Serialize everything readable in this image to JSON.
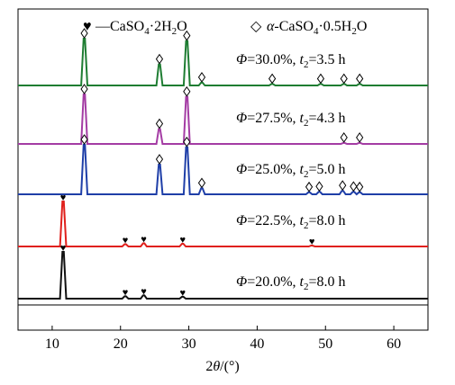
{
  "chart_data": {
    "type": "line",
    "xlabel": "2θ/(°)",
    "ylabel": "",
    "xlim": [
      5,
      65
    ],
    "x_ticks": [
      "10",
      "20",
      "30",
      "40",
      "50",
      "60"
    ],
    "grid": false,
    "legend": {
      "placement": "top",
      "entries": [
        {
          "marker": "♥",
          "label": "—CaSO₄·2H₂O"
        },
        {
          "marker": "◇",
          "label": "α-CaSO₄·0.5H₂O"
        }
      ]
    },
    "series": [
      {
        "name": "Φ=30.0%, t₂=3.5 h",
        "color": "#1e7d32",
        "peaks": [
          {
            "x": 14.7,
            "h": 1.0,
            "marker": "diamond"
          },
          {
            "x": 25.7,
            "h": 0.45,
            "marker": "diamond"
          },
          {
            "x": 29.7,
            "h": 0.95,
            "marker": "diamond"
          },
          {
            "x": 31.9,
            "h": 0.06,
            "marker": "diamond"
          },
          {
            "x": 42.2,
            "h": 0.03,
            "marker": "diamond"
          },
          {
            "x": 49.3,
            "h": 0.03,
            "marker": "diamond"
          },
          {
            "x": 52.7,
            "h": 0.03,
            "marker": "diamond"
          },
          {
            "x": 55.0,
            "h": 0.03,
            "marker": "diamond"
          }
        ]
      },
      {
        "name": "Φ=27.5%, t₂=4.3 h",
        "color": "#a43ca4",
        "peaks": [
          {
            "x": 14.7,
            "h": 1.0,
            "marker": "diamond"
          },
          {
            "x": 25.7,
            "h": 0.3,
            "marker": "diamond"
          },
          {
            "x": 29.7,
            "h": 0.95,
            "marker": "diamond"
          },
          {
            "x": 52.7,
            "h": 0.02,
            "marker": "diamond"
          },
          {
            "x": 55.0,
            "h": 0.02,
            "marker": "diamond"
          }
        ]
      },
      {
        "name": "Φ=25.0%, t₂=5.0 h",
        "color": "#1f3fa8",
        "peaks": [
          {
            "x": 14.7,
            "h": 1.0,
            "marker": "diamond"
          },
          {
            "x": 25.7,
            "h": 0.6,
            "marker": "diamond"
          },
          {
            "x": 29.7,
            "h": 0.95,
            "marker": "diamond"
          },
          {
            "x": 31.9,
            "h": 0.12,
            "marker": "diamond"
          },
          {
            "x": 47.6,
            "h": 0.04,
            "marker": "diamond"
          },
          {
            "x": 49.1,
            "h": 0.05,
            "marker": "diamond"
          },
          {
            "x": 52.5,
            "h": 0.07,
            "marker": "diamond"
          },
          {
            "x": 54.1,
            "h": 0.05,
            "marker": "diamond"
          },
          {
            "x": 55.0,
            "h": 0.04,
            "marker": "diamond"
          }
        ]
      },
      {
        "name": "Φ=22.5%, t₂=8.0 h",
        "color": "#e0201c",
        "peaks": [
          {
            "x": 11.6,
            "h": 1.0,
            "marker": "heart"
          },
          {
            "x": 20.7,
            "h": 0.05,
            "marker": "heart"
          },
          {
            "x": 23.4,
            "h": 0.07,
            "marker": "heart"
          },
          {
            "x": 29.1,
            "h": 0.06,
            "marker": "heart"
          },
          {
            "x": 48.0,
            "h": 0.02,
            "marker": "heart"
          }
        ]
      },
      {
        "name": "Φ=20.0%, t₂=8.0 h",
        "color": "#111111",
        "peaks": [
          {
            "x": 11.6,
            "h": 1.0,
            "marker": "heart"
          },
          {
            "x": 20.7,
            "h": 0.05,
            "marker": "heart"
          },
          {
            "x": 23.4,
            "h": 0.07,
            "marker": "heart"
          },
          {
            "x": 29.1,
            "h": 0.04,
            "marker": "heart"
          }
        ]
      }
    ]
  }
}
